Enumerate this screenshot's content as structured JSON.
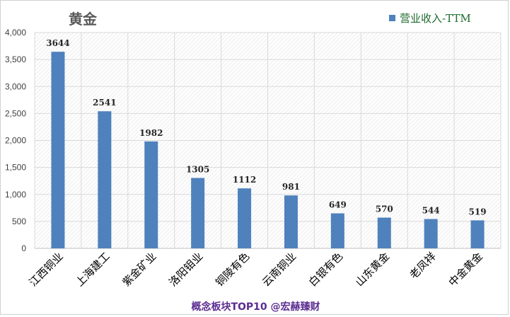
{
  "chart_data": {
    "type": "bar",
    "title": "黄金",
    "categories": [
      "江西铜业",
      "上海建工",
      "紫金矿业",
      "洛阳钼业",
      "铜陵有色",
      "云南铜业",
      "白银有色",
      "山东黄金",
      "老凤祥",
      "中金黄金"
    ],
    "series": [
      {
        "name": "营业收入-TTM",
        "color": "#4f81bd",
        "values": [
          3644,
          2541,
          1982,
          1305,
          1112,
          981,
          649,
          570,
          544,
          519
        ]
      }
    ],
    "y_ticks": [
      "0",
      "500",
      "1,000",
      "1,500",
      "2,000",
      "2,500",
      "3,000",
      "3,500",
      "4,000"
    ],
    "ylim": [
      0,
      4000
    ],
    "grid": true,
    "legend_position": "top-right",
    "footer": "概念板块TOP10 @宏赫臻财"
  }
}
